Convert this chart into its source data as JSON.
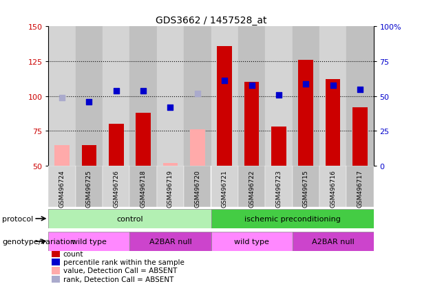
{
  "title": "GDS3662 / 1457528_at",
  "samples": [
    "GSM496724",
    "GSM496725",
    "GSM496726",
    "GSM496718",
    "GSM496719",
    "GSM496720",
    "GSM496721",
    "GSM496722",
    "GSM496723",
    "GSM496715",
    "GSM496716",
    "GSM496717"
  ],
  "count_values": [
    65,
    65,
    80,
    88,
    52,
    76,
    136,
    110,
    78,
    126,
    112,
    92
  ],
  "count_absent": [
    true,
    false,
    false,
    false,
    true,
    true,
    false,
    false,
    false,
    false,
    false,
    false
  ],
  "rank_values": [
    49,
    46,
    54,
    54,
    42,
    52,
    61,
    58,
    51,
    59,
    58,
    55
  ],
  "rank_absent": [
    true,
    false,
    false,
    false,
    false,
    true,
    false,
    false,
    false,
    false,
    false,
    false
  ],
  "ylim_left": [
    50,
    150
  ],
  "ylim_right": [
    0,
    100
  ],
  "yticks_left": [
    50,
    75,
    100,
    125,
    150
  ],
  "yticks_right": [
    0,
    25,
    50,
    75,
    100
  ],
  "ytick_right_labels": [
    "0",
    "25",
    "50",
    "75",
    "100%"
  ],
  "color_count": "#cc0000",
  "color_count_absent": "#ffaaaa",
  "color_rank": "#0000cc",
  "color_rank_absent": "#aaaacc",
  "bg_color_even": "#d4d4d4",
  "bg_color_odd": "#c0c0c0",
  "protocol_groups": [
    {
      "label": "control",
      "start": 0,
      "end": 6,
      "color": "#b3f0b3"
    },
    {
      "label": "ischemic preconditioning",
      "start": 6,
      "end": 12,
      "color": "#44cc44"
    }
  ],
  "genotype_groups": [
    {
      "label": "wild type",
      "start": 0,
      "end": 3,
      "color": "#ff88ff"
    },
    {
      "label": "A2BAR null",
      "start": 3,
      "end": 6,
      "color": "#cc44cc"
    },
    {
      "label": "wild type",
      "start": 6,
      "end": 9,
      "color": "#ff88ff"
    },
    {
      "label": "A2BAR null",
      "start": 9,
      "end": 12,
      "color": "#cc44cc"
    }
  ],
  "legend_items": [
    {
      "label": "count",
      "color": "#cc0000"
    },
    {
      "label": "percentile rank within the sample",
      "color": "#0000cc"
    },
    {
      "label": "value, Detection Call = ABSENT",
      "color": "#ffaaaa"
    },
    {
      "label": "rank, Detection Call = ABSENT",
      "color": "#aaaacc"
    }
  ],
  "protocol_label": "protocol",
  "genotype_label": "genotype/variation",
  "bar_width": 0.55,
  "rank_marker_size": 28
}
